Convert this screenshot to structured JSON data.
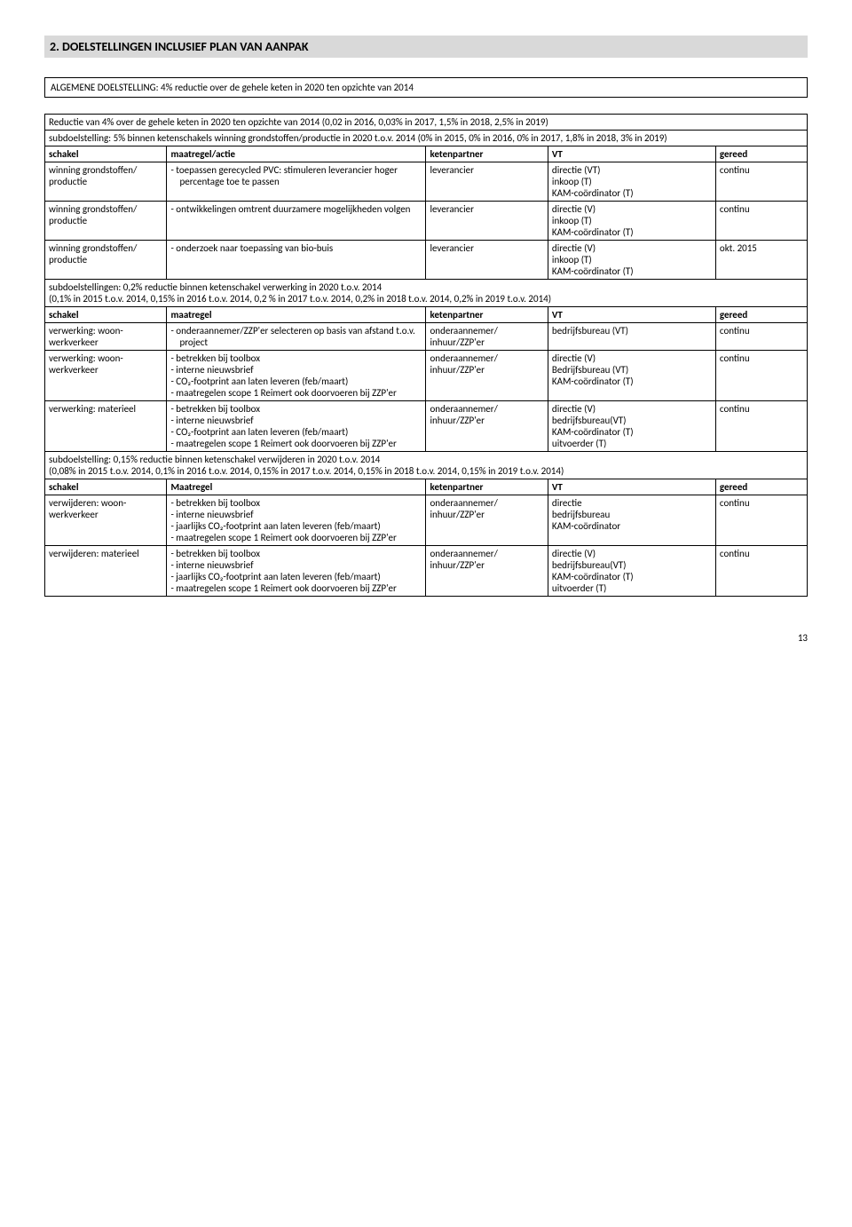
{
  "heading": "2.  DOELSTELLINGEN INCLUSIEF PLAN VAN AANPAK",
  "generalBox": "ALGEMENE DOELSTELLING: 4% reductie over de gehele keten in 2020 ten opzichte van 2014",
  "introRow": "Reductie van 4% over de gehele keten in 2020 ten opzichte van 2014 (0,02 in 2016, 0,03% in 2017, 1,5% in 2018, 2,5% in 2019)",
  "sub1": "subdoelstelling: 5% binnen ketenschakels winning grondstoffen/productie in 2020 t.o.v. 2014 (0% in 2015, 0% in 2016, 0% in 2017, 1,8% in 2018, 3% in 2019)",
  "headers": {
    "schakel": "schakel",
    "maatregel_actie": "maatregel/actie",
    "maatregel": "maatregel",
    "maatregel_cap": "Maatregel",
    "ketenpartner": "ketenpartner",
    "vt": "VT",
    "gereed": "gereed"
  },
  "rows1": [
    {
      "schakel": "winning grondstoffen/ productie",
      "maatregel": [
        "toepassen gerecycled PVC: stimuleren leverancier hoger percentage toe te passen"
      ],
      "keten": "leverancier",
      "vt": "directie (VT)\ninkoop (T)\nKAM-coördinator (T)",
      "gereed": "continu"
    },
    {
      "schakel": "winning grondstoffen/ productie",
      "maatregel": [
        "ontwikkelingen omtrent duurzamere mogelijkheden volgen"
      ],
      "keten": "leverancier",
      "vt": "directie (V)\ninkoop (T)\nKAM-coördinator (T)",
      "gereed": "continu"
    },
    {
      "schakel": "winning grondstoffen/ productie",
      "maatregel": [
        "onderzoek naar toepassing van bio-buis"
      ],
      "keten": "leverancier",
      "vt": "directie (V)\ninkoop (T)\nKAM-coördinator (T)",
      "gereed": "okt. 2015"
    }
  ],
  "sub2": "subdoelstellingen: 0,2% reductie binnen ketenschakel verwerking in 2020 t.o.v. 2014\n(0,1% in 2015 t.o.v. 2014, 0,15% in 2016 t.o.v. 2014, 0,2 % in 2017 t.o.v. 2014, 0,2% in 2018 t.o.v. 2014, 0,2% in 2019 t.o.v. 2014)",
  "rows2": [
    {
      "schakel": "verwerking: woon-werkverkeer",
      "maatregel": [
        "onderaannemer/ZZP'er selecteren op basis van afstand t.o.v. project"
      ],
      "keten": "onderaannemer/ inhuur/ZZP'er",
      "vt": "bedrijfsbureau (VT)",
      "gereed": "continu"
    },
    {
      "schakel": "verwerking: woon-werkverkeer",
      "maatregel": [
        "betrekken bij toolbox",
        "interne nieuwsbrief",
        "CO₂-footprint aan laten leveren (feb/maart)",
        "maatregelen scope 1 Reimert ook doorvoeren bij ZZP'er"
      ],
      "keten": "onderaannemer/ inhuur/ZZP'er",
      "vt": "directie (V)\nBedrijfsbureau (VT)\nKAM-coördinator (T)",
      "gereed": "continu"
    },
    {
      "schakel": "verwerking: materieel",
      "maatregel": [
        "betrekken bij toolbox",
        "interne nieuwsbrief",
        "CO₂-footprint aan laten leveren (feb/maart)",
        "maatregelen scope 1 Reimert ook doorvoeren bij ZZP'er"
      ],
      "keten": "onderaannemer/ inhuur/ZZP'er",
      "vt": "directie (V)\nbedrijfsbureau(VT)\nKAM-coördinator (T)\nuitvoerder (T)",
      "gereed": "continu"
    }
  ],
  "sub3": "subdoelstelling: 0,15% reductie binnen ketenschakel verwijderen in 2020 t.o.v. 2014\n(0,08% in 2015 t.o.v. 2014, 0,1% in 2016 t.o.v. 2014, 0,15% in 2017 t.o.v. 2014, 0,15% in 2018 t.o.v. 2014, 0,15% in 2019 t.o.v. 2014)",
  "rows3": [
    {
      "schakel": "verwijderen: woon-werkverkeer",
      "maatregel": [
        "betrekken bij toolbox",
        "interne nieuwsbrief",
        "jaarlijks CO₂-footprint aan laten leveren (feb/maart)",
        "maatregelen scope 1 Reimert ook doorvoeren bij ZZP'er"
      ],
      "keten": "onderaannemer/ inhuur/ZZP'er",
      "vt": "directie\nbedrijfsbureau\nKAM-coördinator",
      "gereed": "continu"
    },
    {
      "schakel": "verwijderen: materieel",
      "maatregel": [
        "betrekken bij toolbox",
        "interne nieuwsbrief",
        "jaarlijks CO₂-footprint aan laten leveren (feb/maart)",
        "maatregelen scope 1 Reimert ook doorvoeren bij ZZP'er"
      ],
      "keten": "onderaannemer/ inhuur/ZZP'er",
      "vt": "directie (V)\nbedrijfsbureau(VT)\nKAM-coördinator (T)\nuitvoerder (T)",
      "gereed": "continu"
    }
  ],
  "pageNum": "13"
}
